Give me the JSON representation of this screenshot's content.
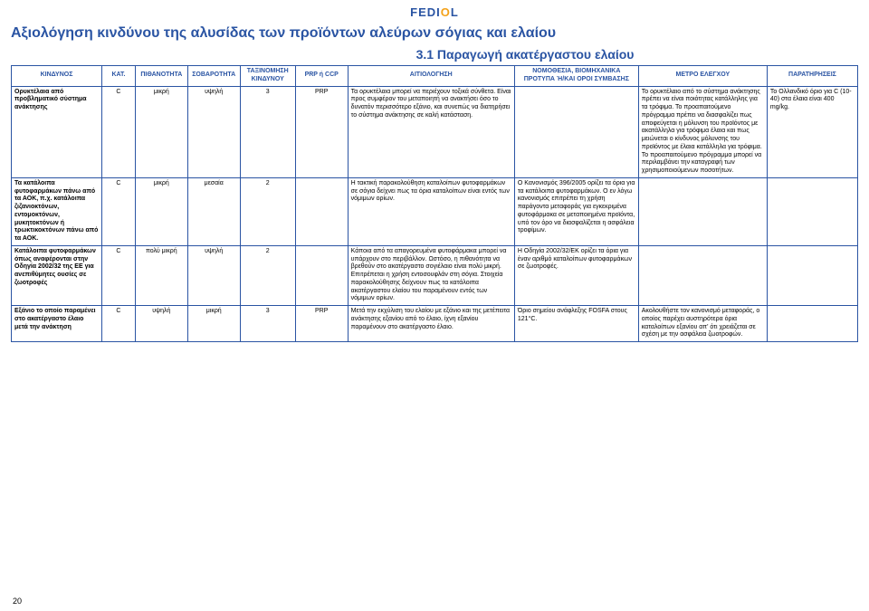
{
  "logo": {
    "part1": "FEDI",
    "mid": "O",
    "part2": "L"
  },
  "title": "Αξιολόγηση κινδύνου της αλυσίδας των προϊόντων αλεύρων σόγιας και ελαίου",
  "section_header": "3.1 Παραγωγή ακατέργαστου ελαίου",
  "page_number": "20",
  "columns": {
    "c1": "ΚΙΝΔΥΝΟΣ",
    "c2": "ΚΑΤ.",
    "c3": "ΠΙΘΑΝΟΤΗΤΑ",
    "c4": "ΣΟΒΑΡΟΤΗΤΑ",
    "c5": "ΤΑΞΙΝΟΜΗΣΗ ΚΙΝΔΥΝΟΥ",
    "c6": "PRP ή CCP",
    "c7": "ΑΙΤΙΟΛΟΓΗΣΗ",
    "c8": "ΝΟΜΟΘΕΣΙΑ, ΒΙΟΜΗΧΑΝΙΚΑ ΠΡΟΤΥΠΑ Ή/ΚΑΙ ΟΡΟΙ ΣΥΜΒΑΣΗΣ",
    "c9": "ΜΕΤΡΟ ΕΛΕΓΧΟΥ",
    "c10": "ΠΑΡΑΤΗΡΗΣΕΙΣ"
  },
  "rows": [
    {
      "risk": "Ορυκτέλαια από προβληματικό σύστημα ανάκτησης",
      "cat": "C",
      "prob": "μικρή",
      "sev": "υψηλή",
      "klass": "3",
      "prp": "PRP",
      "just": "Τα ορυκτέλαια μπορεί να περιέχουν τοξικά σύνθετα. Είναι προς συμφέρον του μεταποιητή να ανακτήσει όσο το δυνατόν περισσότερο εξάνιο, και συνεπώς να διατηρήσει το σύστημα ανάκτησης σε καλή κατάσταση.",
      "law": "",
      "ctrl": "Το ορυκτέλαιο από το σύστημα ανάκτησης πρέπει να είναι ποιότητας κατάλληλης για τα τρόφιμα. Το προαπαιτούμενο πρόγραμμα πρέπει να διασφαλίζει πως αποφεύγεται η μόλυνση του προϊόντος με ακατάλληλα για τρόφιμα έλαια και πως μειώνεται ο κίνδυνος μόλυνσης του προϊόντος με έλαια κατάλληλα για τρόφιμα. Το προαπαιτούμενο πρόγραμμα μπορεί να περιλαμβάνει την καταγραφή των χρησιμοποιούμενων ποσοτήτων.",
      "notes": "Το Ολλανδικό όριο για C (10-40) στα έλαια είναι 400 mg/kg."
    },
    {
      "risk": "Τα κατάλοιπα φυτοφαρμάκων πάνω από τα ΑΟΚ, π.χ. κατάλοιπα ζιζανιοκτόνων, εντομοκτόνων, μυκητοκτόνων ή τρωκτικοκτόνων πάνω από τα ΑΟΚ.",
      "cat": "C",
      "prob": "μικρή",
      "sev": "μεσαία",
      "klass": "2",
      "prp": "",
      "just": "Η τακτική παρακολούθηση καταλοίπων φυτοφαρμάκων σε σόγια δείχνει πως τα όρια καταλοίπων είναι εντός των νόμιμων ορίων.",
      "law": "Ο Κανονισμός 396/2005 ορίζει τα όρια για τα κατάλοιπα φυτοφαρμάκων. Ο εν λόγω κανονισμός επιτρέπει τη χρήση παράγοντα μεταφοράς για εγκεκριμένα φυτοφάρμακα σε μεταποιημένα προϊόντα, υπό τον όρο να διασφαλίζεται η ασφάλεια τροφίμων.",
      "ctrl": "",
      "notes": ""
    },
    {
      "risk": "Κατάλοιπα φυτοφαρμάκων όπως αναφέρονται στην Οδηγία 2002/32 της ΕΕ  για ανεπιθύμητες ουσίες σε ζωοτροφές",
      "cat": "C",
      "prob": "πολύ μικρή",
      "sev": "υψηλή",
      "klass": "2",
      "prp": "",
      "just": "Κάποια από τα απαγορευμένα φυτοφάρμακα μπορεί να υπάρχουν στο περιβάλλον. Ωστόσο, η πιθανότητα να βρεθούν στο ακατέργαστο σογιέλαιο είναι πολύ μικρή. Επιτρέπεται η χρήση εντοσουφλάν στη σόγια. Στοιχεία παρακολούθησης δείχνουν πως τα κατάλοιπα ακατέργαστου ελαίου του παραμένουν εντός των νόμιμων ορίων.",
      "law": "Η Οδηγία 2002/32/ΕΚ ορίζει τα όρια για έναν αριθμό καταλοίπων φυτοφαρμάκων σε ζωοτροφές.",
      "ctrl": "",
      "notes": ""
    },
    {
      "risk": "Εξάνιο το οποίο παραμένει στο ακατέργαστο έλαιο μετά την ανάκτηση",
      "cat": "C",
      "prob": "υψηλή",
      "sev": "μικρή",
      "klass": "3",
      "prp": "PRP",
      "just": "Μετά την εκχύλιση του ελαίου με εξάνιο και της μετέπειτα ανάκτησης εξανίου από το έλαιο, ίχνη εξανίου παραμένουν στο ακατέργαστο έλαιο.",
      "law": "Όριο σημείου ανάφλεξης FOSFA στους 121°C.",
      "ctrl": "Ακολουθήστε τον κανονισμό μεταφοράς, ο οποίος παρέχει αυστηρότερα όρια καταλοίπων εξανίου απ' ότι χρειάζεται σε σχέση με την ασφάλεια ζωοτροφών.",
      "notes": ""
    }
  ]
}
